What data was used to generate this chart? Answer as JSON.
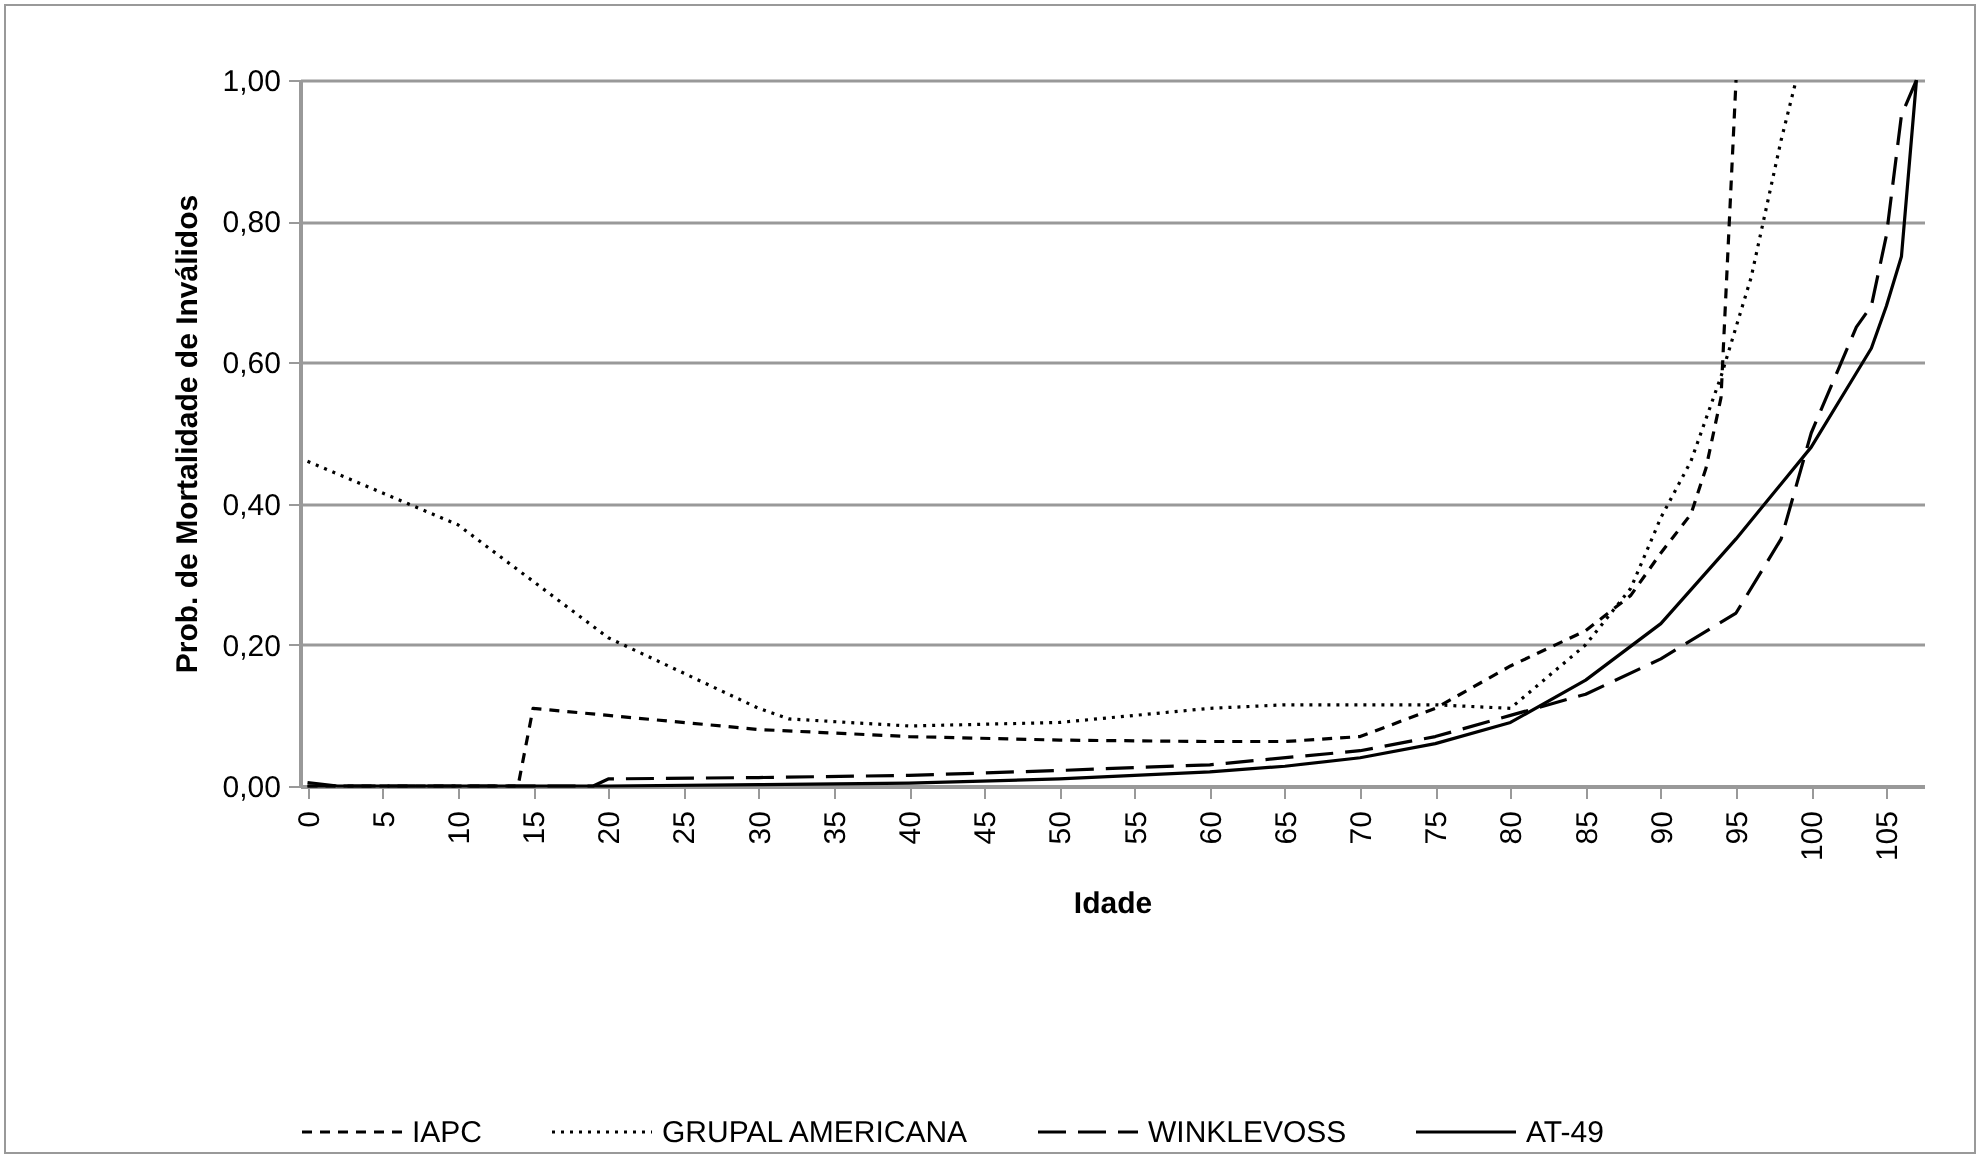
{
  "chart_data": {
    "type": "line",
    "xlabel": "Idade",
    "ylabel": "Prob. de Mortalidade de Inválidos",
    "xlim": [
      -0.5,
      107.5
    ],
    "xticks": [
      0,
      5,
      10,
      15,
      20,
      25,
      30,
      35,
      40,
      45,
      50,
      55,
      60,
      65,
      70,
      75,
      80,
      85,
      90,
      95,
      100,
      105
    ],
    "ylim": [
      0,
      1
    ],
    "yticks": [
      {
        "value": 0,
        "label": "0,00"
      },
      {
        "value": 0.2,
        "label": "0,20"
      },
      {
        "value": 0.4,
        "label": "0,40"
      },
      {
        "value": 0.6,
        "label": "0,60"
      },
      {
        "value": 0.8,
        "label": "0,80"
      },
      {
        "value": 1,
        "label": "1,00"
      }
    ],
    "grid": "y",
    "legend": "bottom",
    "marker": "none",
    "series": [
      {
        "name": "IAPC",
        "color": "#000000",
        "line_style": "dashed",
        "x": [
          0,
          5,
          10,
          14,
          15,
          20,
          30,
          40,
          50,
          60,
          65,
          70,
          75,
          80,
          85,
          88,
          90,
          92,
          93,
          94,
          95
        ],
        "values": [
          0,
          0,
          0,
          0,
          0.11,
          0.1,
          0.08,
          0.07,
          0.065,
          0.063,
          0.063,
          0.07,
          0.11,
          0.17,
          0.22,
          0.27,
          0.33,
          0.385,
          0.45,
          0.55,
          1
        ]
      },
      {
        "name": "GRUPAL AMERICANA",
        "color": "#000000",
        "line_style": "dotted",
        "x": [
          0,
          10,
          20,
          30,
          32,
          40,
          50,
          55,
          60,
          65,
          70,
          75,
          80,
          85,
          88,
          90,
          92,
          94,
          96,
          98,
          99
        ],
        "values": [
          0.46,
          0.37,
          0.21,
          0.11,
          0.095,
          0.085,
          0.09,
          0.1,
          0.11,
          0.115,
          0.115,
          0.115,
          0.11,
          0.2,
          0.28,
          0.38,
          0.46,
          0.58,
          0.72,
          0.915,
          1
        ]
      },
      {
        "name": "WINKLEVOSS",
        "color": "#000000",
        "line_style": "dashed",
        "x": [
          0,
          10,
          19,
          20,
          30,
          40,
          50,
          60,
          70,
          75,
          80,
          85,
          90,
          95,
          98,
          100,
          103,
          104,
          105,
          106,
          107
        ],
        "values": [
          0,
          0,
          0,
          0.01,
          0.012,
          0.015,
          0.022,
          0.03,
          0.05,
          0.07,
          0.1,
          0.13,
          0.18,
          0.245,
          0.35,
          0.5,
          0.65,
          0.68,
          0.78,
          0.95,
          1
        ]
      },
      {
        "name": "AT-49",
        "color": "#000000",
        "line_style": "solid",
        "x": [
          0,
          2,
          10,
          20,
          30,
          40,
          50,
          60,
          65,
          70,
          75,
          80,
          85,
          90,
          95,
          100,
          103,
          104,
          105,
          106,
          107
        ],
        "values": [
          0.005,
          0,
          0,
          0,
          0.002,
          0.004,
          0.01,
          0.02,
          0.028,
          0.04,
          0.06,
          0.09,
          0.15,
          0.23,
          0.35,
          0.48,
          0.585,
          0.62,
          0.68,
          0.75,
          1
        ]
      }
    ]
  }
}
